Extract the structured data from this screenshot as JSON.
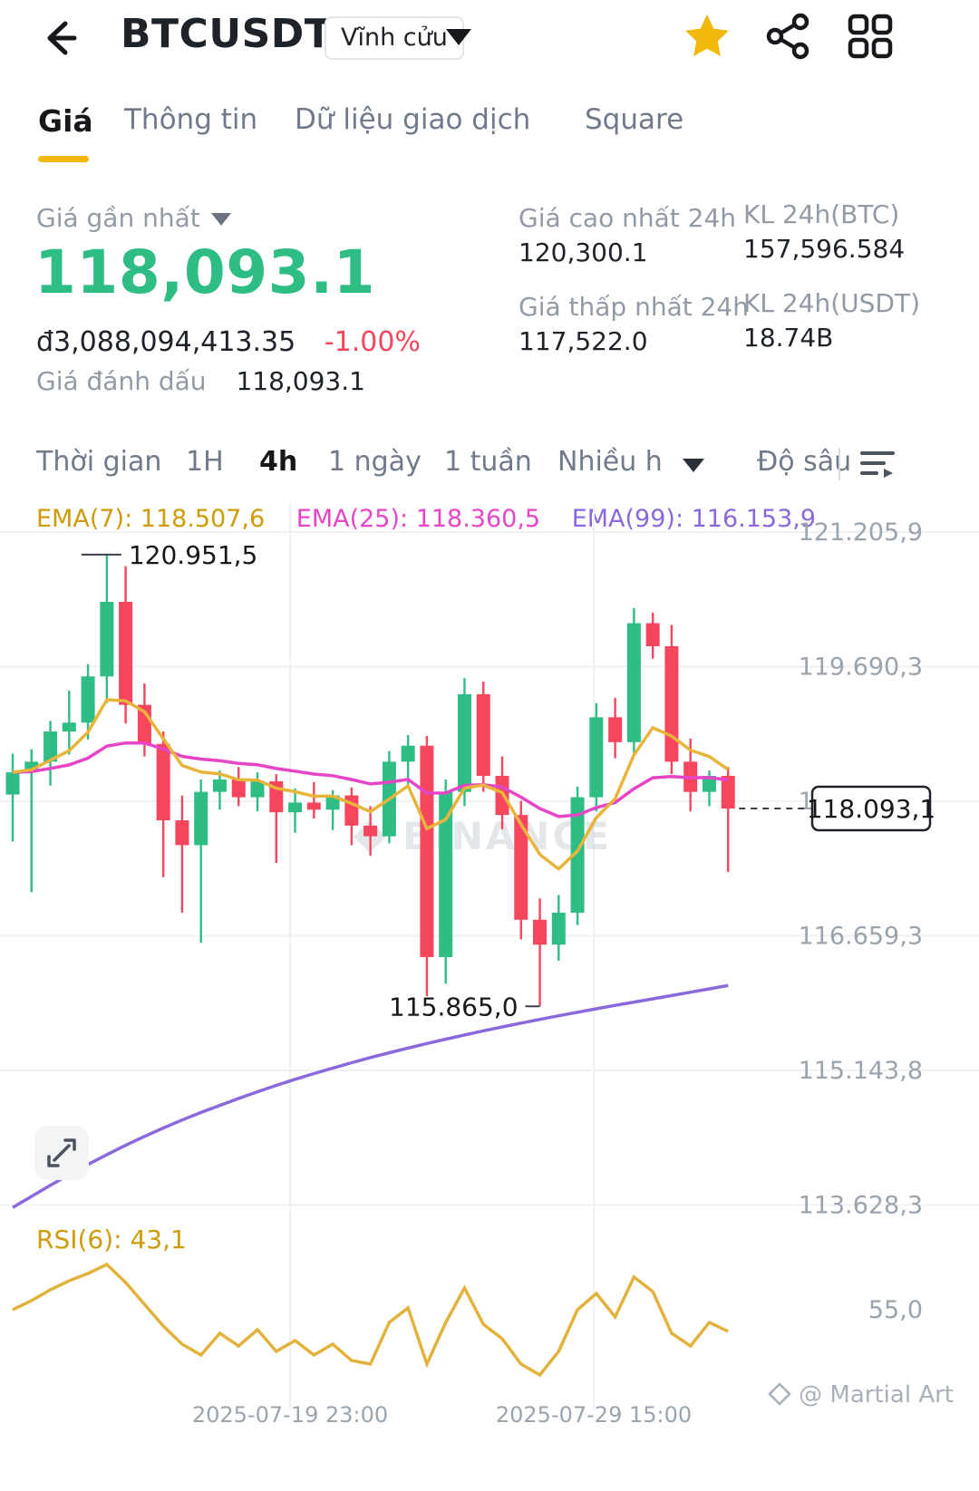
{
  "header": {
    "title": "BTCUSDT",
    "contract_badge": "Vĩnh cửu"
  },
  "tabs": [
    {
      "label": "Giá",
      "active": true
    },
    {
      "label": "Thông tin",
      "active": false
    },
    {
      "label": "Dữ liệu giao dịch",
      "active": false
    },
    {
      "label": "Square",
      "active": false
    }
  ],
  "price_panel": {
    "last_price_label": "Giá gần nhất",
    "last_price": "118,093.1",
    "fiat_value": "đ3,088,094,413.35",
    "change_pct": "-1.00%",
    "mark_price_label": "Giá đánh dấu",
    "mark_price": "118,093.1",
    "high_label": "Giá cao nhất 24h",
    "high_value": "120,300.1",
    "low_label": "Giá thấp nhất 24h",
    "low_value": "117,522.0",
    "vol_btc_label": "KL 24h(BTC)",
    "vol_btc_value": "157,596.584",
    "vol_usdt_label": "KL 24h(USDT)",
    "vol_usdt_value": "18.74B"
  },
  "intervals": {
    "items": [
      {
        "label": "Thời gian",
        "active": false
      },
      {
        "label": "1H",
        "active": false
      },
      {
        "label": "4h",
        "active": true
      },
      {
        "label": "1 ngày",
        "active": false
      },
      {
        "label": "1 tuần",
        "active": false
      },
      {
        "label": "Nhiều h",
        "active": false
      },
      {
        "label": "Độ sâu",
        "active": false
      }
    ]
  },
  "watermark_credit": "@ Martial Art",
  "chart_data": {
    "type": "candlestick",
    "interval": "4h",
    "legend": {
      "ema7": "EMA(7): 118.507,6",
      "ema25": "EMA(25): 118.360,5",
      "ema99": "EMA(99): 116.153,9"
    },
    "watermark": "BINANCE",
    "y_axis_labels": [
      "121.205,9",
      "119.690,3",
      "118.174,8",
      "116.659,3",
      "115.143,8",
      "113.628,3"
    ],
    "y_axis_values": [
      121205.9,
      119690.3,
      118174.8,
      116659.3,
      115143.8,
      113628.3
    ],
    "x_axis_labels": [
      "2025-07-19 23:00",
      "2025-07-29 15:00"
    ],
    "x_gridlines": [
      320,
      655
    ],
    "high_annotation": "120.951,5",
    "low_annotation": "115.865,0",
    "current_price": 118093.1,
    "current_price_label": "118.093,1",
    "candles": [
      [
        118250,
        118710,
        117720,
        118500
      ],
      [
        118500,
        118760,
        117150,
        118620
      ],
      [
        118620,
        119080,
        118350,
        118960
      ],
      [
        118960,
        119420,
        118700,
        119060
      ],
      [
        119060,
        119720,
        118870,
        119580
      ],
      [
        119580,
        120951.5,
        119280,
        120420
      ],
      [
        120420,
        120820,
        119050,
        119260
      ],
      [
        119260,
        119500,
        118680,
        118820
      ],
      [
        118820,
        118960,
        117320,
        117960
      ],
      [
        117960,
        118240,
        116920,
        117680
      ],
      [
        117680,
        118420,
        116580,
        118280
      ],
      [
        118280,
        118520,
        118080,
        118420
      ],
      [
        118420,
        118560,
        118120,
        118220
      ],
      [
        118220,
        118500,
        118060,
        118400
      ],
      [
        118400,
        118480,
        117480,
        118050
      ],
      [
        118050,
        118320,
        117820,
        118160
      ],
      [
        118160,
        118390,
        117980,
        118080
      ],
      [
        118080,
        118300,
        117850,
        118240
      ],
      [
        118240,
        118330,
        117680,
        117900
      ],
      [
        117900,
        118120,
        117560,
        117780
      ],
      [
        117780,
        118740,
        117700,
        118620
      ],
      [
        118620,
        118920,
        118360,
        118800
      ],
      [
        118800,
        118910,
        115980,
        116420
      ],
      [
        116420,
        118420,
        116120,
        118280
      ],
      [
        118280,
        119560,
        118120,
        119380
      ],
      [
        119380,
        119520,
        118280,
        118460
      ],
      [
        118460,
        118680,
        117860,
        118020
      ],
      [
        118020,
        118180,
        116620,
        116840
      ],
      [
        116840,
        117080,
        115865,
        116560
      ],
      [
        116560,
        117120,
        116380,
        116920
      ],
      [
        116920,
        118340,
        116780,
        118220
      ],
      [
        118220,
        119280,
        118060,
        119120
      ],
      [
        119120,
        119340,
        118660,
        118840
      ],
      [
        118840,
        120350,
        118720,
        120180
      ],
      [
        120180,
        120300,
        119780,
        119920
      ],
      [
        119920,
        120160,
        118480,
        118620
      ],
      [
        118620,
        118880,
        118060,
        118280
      ],
      [
        118280,
        118520,
        118120,
        118460
      ],
      [
        118460,
        118560,
        117380,
        118093.1
      ]
    ],
    "ema99": [
      113600,
      113725,
      113850,
      113970,
      114085,
      114195,
      114300,
      114400,
      114495,
      114585,
      114670,
      114750,
      114828,
      114903,
      114975,
      115043,
      115108,
      115170,
      115230,
      115288,
      115343,
      115396,
      115447,
      115496,
      115543,
      115589,
      115633,
      115676,
      115718,
      115759,
      115799,
      115838,
      115876,
      115913,
      115950,
      115987,
      116024,
      116062,
      116100
    ],
    "rsi": {
      "label": "RSI(6): 43,1",
      "axis_label": "55,0",
      "axis_value": 55,
      "values": [
        55,
        60,
        66,
        71,
        75,
        80,
        70,
        58,
        46,
        36,
        30,
        42,
        35,
        44,
        32,
        38,
        30,
        36,
        27,
        25,
        48,
        56,
        25,
        48,
        67,
        47,
        39,
        25,
        19,
        32,
        55,
        64,
        51,
        73,
        65,
        42,
        35,
        48,
        43.1
      ]
    },
    "colors": {
      "up": "#2EBD85",
      "down": "#F6465D",
      "ema7": "#E8B43A",
      "ema25": "#E645C8",
      "ema99": "#8B68DB",
      "rsi": "#E3B23C",
      "grid": "#F0F1F3",
      "axis_text": "#9AA4AF"
    }
  }
}
